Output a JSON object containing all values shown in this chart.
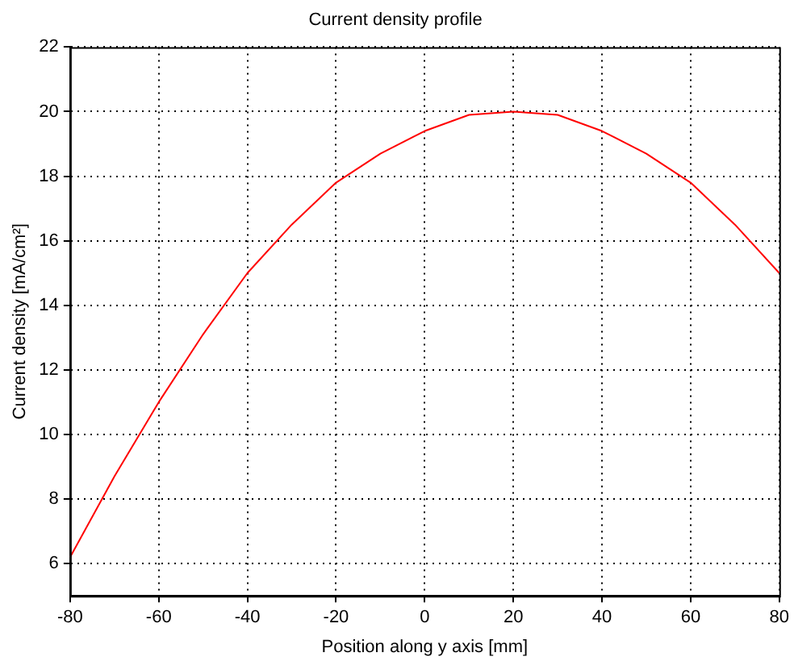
{
  "chart_data": {
    "type": "line",
    "title": "Current density profile",
    "xlabel": "Position along y axis [mm]",
    "ylabel": "Current density [mA/cm²]",
    "x": [
      -80,
      -70,
      -60,
      -50,
      -40,
      -30,
      -20,
      -10,
      0,
      10,
      20,
      30,
      40,
      50,
      60,
      70,
      80
    ],
    "series": [
      {
        "color": "#ff0000",
        "values": [
          6.2,
          8.7,
          11.0,
          13.1,
          15.0,
          16.5,
          17.8,
          18.7,
          19.4,
          19.9,
          20.0,
          19.9,
          19.4,
          18.7,
          17.8,
          16.5,
          15.0
        ]
      }
    ],
    "xlim": [
      -80,
      80
    ],
    "xticks": [
      -80,
      -60,
      -40,
      -20,
      0,
      20,
      40,
      60,
      80
    ],
    "ylim": [
      5,
      22
    ],
    "yticks": [
      6,
      8,
      10,
      12,
      14,
      16,
      18,
      20,
      22
    ],
    "grid": true,
    "legend": false,
    "marker": "none",
    "line_style": "solid"
  }
}
